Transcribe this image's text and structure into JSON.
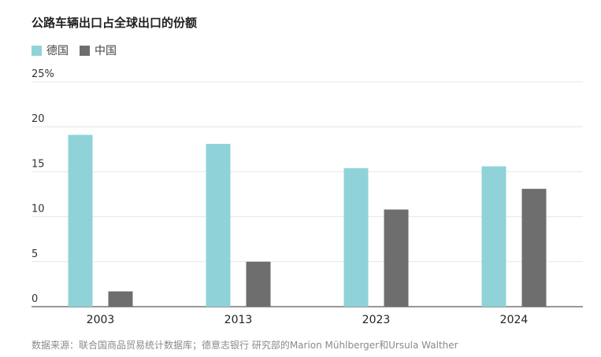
{
  "title": "公路车辆出口占全球出口的份额",
  "colors": {
    "germany": "#8fd3d9",
    "china": "#6e6e6e",
    "grid": "#e6e6e6",
    "axis": "#777777"
  },
  "source": "数据来源：联合国商品贸易统计数据库；德意志银行 研究部的Marion Mühlberger和Ursula Walther",
  "chart_data": {
    "type": "bar",
    "categories": [
      "2003",
      "2013",
      "2023",
      "2024"
    ],
    "series": [
      {
        "name": "德国",
        "values": [
          19.1,
          18.1,
          15.4,
          15.6
        ]
      },
      {
        "name": "中国",
        "values": [
          1.7,
          5.0,
          10.8,
          13.1
        ]
      }
    ],
    "y_ticks": [
      "0",
      "5",
      "10",
      "15",
      "20",
      "25%"
    ],
    "ylim": [
      0,
      25
    ],
    "grid": true,
    "legend_position": "top-left"
  }
}
